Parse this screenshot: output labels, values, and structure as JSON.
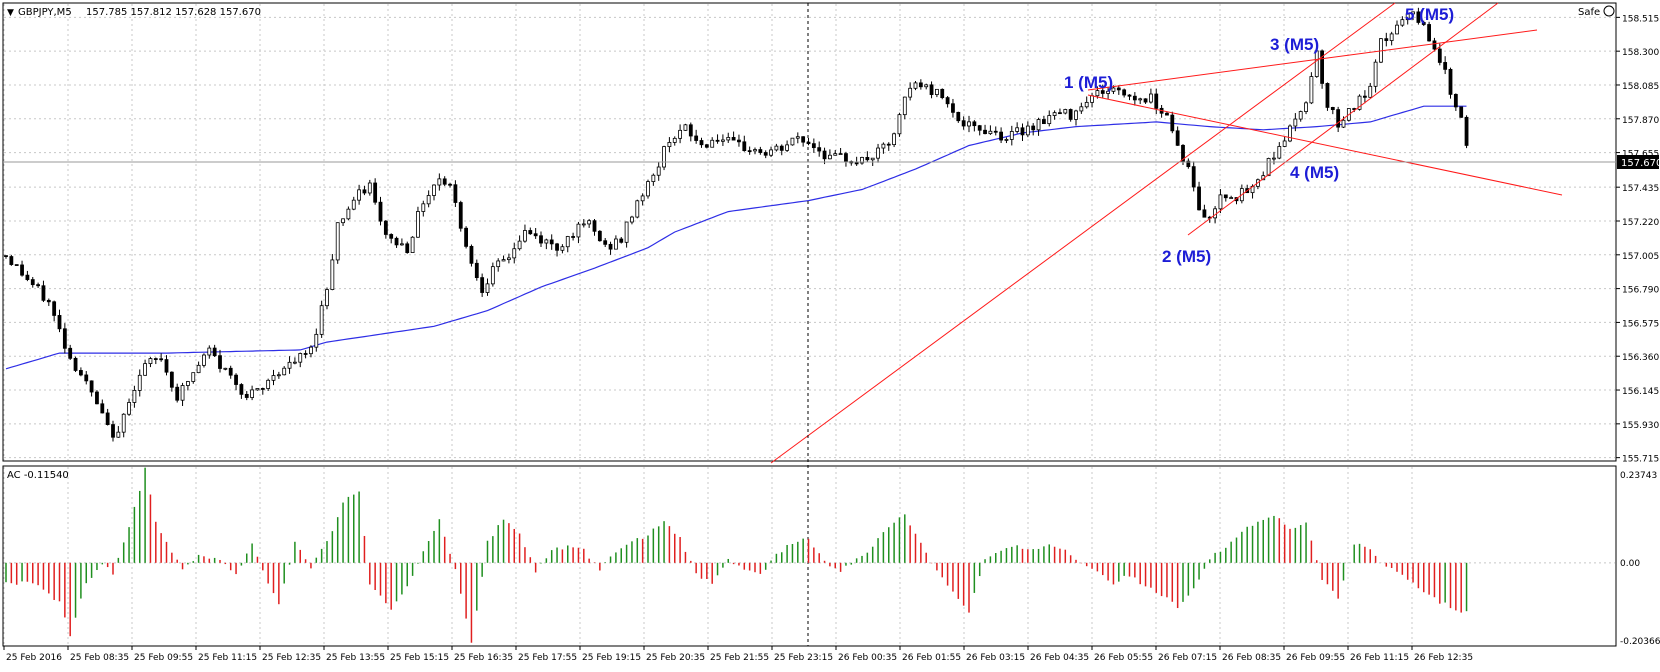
{
  "header": {
    "symbol_info": "GBPJPY,M5",
    "ohlc": "157.785 157.812 157.628 157.670",
    "safe_label": "Safe"
  },
  "price_panel": {
    "y_ticks": [
      "158.515",
      "158.300",
      "158.085",
      "157.870",
      "157.655",
      "157.435",
      "157.220",
      "157.005",
      "156.790",
      "156.575",
      "156.360",
      "156.145",
      "155.930",
      "155.715"
    ],
    "current_price": "157.670",
    "wave_labels": [
      "1 (M5)",
      "2 (M5)",
      "3 (M5)",
      "4 (M5)",
      "5 (M5)"
    ]
  },
  "indicator": {
    "title": "AC -0.11540",
    "y_ticks": [
      "0.23743",
      "0.00",
      "-0.20366"
    ]
  },
  "x_ticks": [
    "25 Feb 2016",
    "25 Feb 08:35",
    "25 Feb 09:55",
    "25 Feb 11:15",
    "25 Feb 12:35",
    "25 Feb 13:55",
    "25 Feb 15:15",
    "25 Feb 16:35",
    "25 Feb 17:55",
    "25 Feb 19:15",
    "25 Feb 20:35",
    "25 Feb 21:55",
    "25 Feb 23:15",
    "26 Feb 00:35",
    "26 Feb 01:55",
    "26 Feb 03:15",
    "26 Feb 04:35",
    "26 Feb 05:55",
    "26 Feb 07:15",
    "26 Feb 08:35",
    "26 Feb 09:55",
    "26 Feb 11:15",
    "26 Feb 12:35"
  ],
  "colors": {
    "candle": "#000000",
    "ma_line": "#2e2ee6",
    "trendline": "#ff1a1a",
    "ac_up": "#1f8f1f",
    "ac_down": "#e01f1f",
    "wave_label": "#1d1dd6",
    "grid": "#c8c8c8"
  },
  "chart_data": [
    {
      "type": "candlestick",
      "title": "GBPJPY,M5",
      "ylim": [
        155.7,
        158.6
      ],
      "x_ticks": "see x_ticks",
      "close_path": [
        [
          0,
          157.0
        ],
        [
          4,
          156.85
        ],
        [
          8,
          156.7
        ],
        [
          12,
          156.35
        ],
        [
          14,
          156.25
        ],
        [
          17,
          156.05
        ],
        [
          19,
          155.9
        ],
        [
          21,
          155.85
        ],
        [
          23,
          156.1
        ],
        [
          26,
          156.3
        ],
        [
          29,
          156.35
        ],
        [
          32,
          156.1
        ],
        [
          35,
          156.25
        ],
        [
          38,
          156.4
        ],
        [
          40,
          156.3
        ],
        [
          43,
          156.2
        ],
        [
          45,
          156.1
        ],
        [
          48,
          156.15
        ],
        [
          50,
          156.25
        ],
        [
          53,
          156.3
        ],
        [
          57,
          156.4
        ],
        [
          60,
          156.8
        ],
        [
          62,
          157.2
        ],
        [
          65,
          157.35
        ],
        [
          68,
          157.45
        ],
        [
          70,
          157.2
        ],
        [
          72,
          157.1
        ],
        [
          75,
          157.05
        ],
        [
          78,
          157.35
        ],
        [
          81,
          157.5
        ],
        [
          83,
          157.45
        ],
        [
          85,
          157.2
        ],
        [
          87,
          156.95
        ],
        [
          89,
          156.8
        ],
        [
          91,
          156.9
        ],
        [
          94,
          157.0
        ],
        [
          97,
          157.15
        ],
        [
          100,
          157.1
        ],
        [
          103,
          157.05
        ],
        [
          106,
          157.15
        ],
        [
          109,
          157.2
        ],
        [
          112,
          157.05
        ],
        [
          115,
          157.1
        ],
        [
          118,
          157.35
        ],
        [
          121,
          157.5
        ],
        [
          124,
          157.75
        ],
        [
          127,
          157.8
        ],
        [
          130,
          157.7
        ],
        [
          133,
          157.75
        ],
        [
          136,
          157.7
        ],
        [
          139,
          157.68
        ],
        [
          142,
          157.65
        ],
        [
          145,
          157.68
        ],
        [
          148,
          157.75
        ],
        [
          151,
          157.7
        ],
        [
          154,
          157.62
        ],
        [
          157,
          157.62
        ],
        [
          160,
          157.6
        ],
        [
          163,
          157.65
        ],
        [
          166,
          157.75
        ],
        [
          168,
          158.0
        ],
        [
          170,
          158.1
        ],
        [
          173,
          158.05
        ],
        [
          176,
          158.0
        ],
        [
          178,
          157.85
        ],
        [
          181,
          157.8
        ],
        [
          184,
          157.8
        ],
        [
          187,
          157.75
        ],
        [
          190,
          157.8
        ],
        [
          193,
          157.85
        ],
        [
          196,
          157.9
        ],
        [
          199,
          157.9
        ],
        [
          202,
          158.0
        ],
        [
          205,
          158.05
        ],
        [
          208,
          158.05
        ],
        [
          211,
          158.0
        ],
        [
          214,
          158.0
        ],
        [
          217,
          157.9
        ],
        [
          219,
          157.7
        ],
        [
          221,
          157.55
        ],
        [
          223,
          157.3
        ],
        [
          225,
          157.22
        ],
        [
          227,
          157.4
        ],
        [
          230,
          157.38
        ],
        [
          233,
          157.42
        ],
        [
          236,
          157.6
        ],
        [
          239,
          157.75
        ],
        [
          241,
          157.85
        ],
        [
          243,
          158.0
        ],
        [
          245,
          158.3
        ],
        [
          247,
          157.95
        ],
        [
          249,
          157.85
        ],
        [
          252,
          157.95
        ],
        [
          255,
          158.05
        ],
        [
          257,
          158.35
        ],
        [
          260,
          158.45
        ],
        [
          262,
          158.53
        ],
        [
          264,
          158.5
        ],
        [
          266,
          158.4
        ],
        [
          268,
          158.25
        ],
        [
          270,
          158.05
        ],
        [
          272,
          157.9
        ],
        [
          273,
          157.67
        ]
      ]
    },
    {
      "type": "line",
      "series": [
        {
          "name": "",
          "points": [
            [
              0,
              156.28
            ],
            [
              10,
              156.38
            ],
            [
              30,
              156.38
            ],
            [
              55,
              156.4
            ],
            [
              60,
              156.45
            ],
            [
              80,
              156.55
            ],
            [
              90,
              156.65
            ],
            [
              100,
              156.8
            ],
            [
              110,
              156.92
            ],
            [
              120,
              157.05
            ],
            [
              125,
              157.15
            ],
            [
              135,
              157.28
            ],
            [
              150,
              157.35
            ],
            [
              160,
              157.42
            ],
            [
              170,
              157.55
            ],
            [
              180,
              157.7
            ],
            [
              190,
              157.78
            ],
            [
              200,
              157.82
            ],
            [
              215,
              157.85
            ],
            [
              225,
              157.82
            ],
            [
              235,
              157.8
            ],
            [
              245,
              157.82
            ],
            [
              255,
              157.85
            ],
            [
              265,
              157.95
            ],
            [
              272,
              157.95
            ]
          ]
        }
      ]
    },
    {
      "type": "bar",
      "title": "AC -0.11540",
      "ylim": [
        -0.20366,
        0.23743
      ],
      "series": [
        {
          "name": "",
          "points": [
            [
              0,
              -0.05
            ],
            [
              5,
              -0.05
            ],
            [
              10,
              -0.1
            ],
            [
              12,
              -0.18
            ],
            [
              15,
              -0.05
            ],
            [
              18,
              0.0
            ],
            [
              20,
              -0.03
            ],
            [
              22,
              0.05
            ],
            [
              25,
              0.18
            ],
            [
              26,
              0.24
            ],
            [
              28,
              0.1
            ],
            [
              31,
              0.03
            ],
            [
              33,
              -0.02
            ],
            [
              36,
              0.02
            ],
            [
              40,
              0.01
            ],
            [
              43,
              -0.03
            ],
            [
              46,
              0.05
            ],
            [
              49,
              -0.05
            ],
            [
              51,
              -0.1
            ],
            [
              54,
              0.05
            ],
            [
              57,
              -0.01
            ],
            [
              60,
              0.05
            ],
            [
              63,
              0.15
            ],
            [
              66,
              0.18
            ],
            [
              68,
              -0.05
            ],
            [
              72,
              -0.12
            ],
            [
              75,
              -0.06
            ],
            [
              78,
              0.03
            ],
            [
              81,
              0.11
            ],
            [
              84,
              -0.02
            ],
            [
              87,
              -0.2
            ],
            [
              90,
              0.05
            ],
            [
              93,
              0.11
            ],
            [
              96,
              0.07
            ],
            [
              99,
              -0.02
            ],
            [
              102,
              0.03
            ],
            [
              105,
              0.04
            ],
            [
              108,
              0.03
            ],
            [
              111,
              -0.02
            ],
            [
              114,
              0.03
            ],
            [
              117,
              0.05
            ],
            [
              120,
              0.07
            ],
            [
              123,
              0.1
            ],
            [
              126,
              0.06
            ],
            [
              129,
              -0.03
            ],
            [
              132,
              -0.05
            ],
            [
              135,
              0.01
            ],
            [
              138,
              -0.02
            ],
            [
              141,
              -0.03
            ],
            [
              144,
              0.02
            ],
            [
              147,
              0.05
            ],
            [
              150,
              0.06
            ],
            [
              153,
              0.0
            ],
            [
              156,
              -0.02
            ],
            [
              159,
              0.01
            ],
            [
              162,
              0.04
            ],
            [
              165,
              0.09
            ],
            [
              168,
              0.12
            ],
            [
              171,
              0.05
            ],
            [
              174,
              -0.02
            ],
            [
              177,
              -0.07
            ],
            [
              180,
              -0.12
            ],
            [
              183,
              0.01
            ],
            [
              186,
              0.03
            ],
            [
              189,
              0.04
            ],
            [
              192,
              0.03
            ],
            [
              195,
              0.05
            ],
            [
              198,
              0.03
            ],
            [
              201,
              0.0
            ],
            [
              204,
              -0.02
            ],
            [
              207,
              -0.05
            ],
            [
              210,
              -0.03
            ],
            [
              213,
              -0.06
            ],
            [
              216,
              -0.08
            ],
            [
              219,
              -0.11
            ],
            [
              222,
              -0.06
            ],
            [
              225,
              0.01
            ],
            [
              228,
              0.04
            ],
            [
              231,
              0.08
            ],
            [
              234,
              0.1
            ],
            [
              237,
              0.12
            ],
            [
              240,
              0.08
            ],
            [
              243,
              0.1
            ],
            [
              246,
              -0.04
            ],
            [
              249,
              -0.09
            ],
            [
              252,
              0.05
            ],
            [
              255,
              0.03
            ],
            [
              258,
              -0.01
            ],
            [
              261,
              -0.03
            ],
            [
              264,
              -0.06
            ],
            [
              267,
              -0.09
            ],
            [
              270,
              -0.11
            ],
            [
              272,
              -0.12
            ]
          ]
        }
      ]
    }
  ]
}
